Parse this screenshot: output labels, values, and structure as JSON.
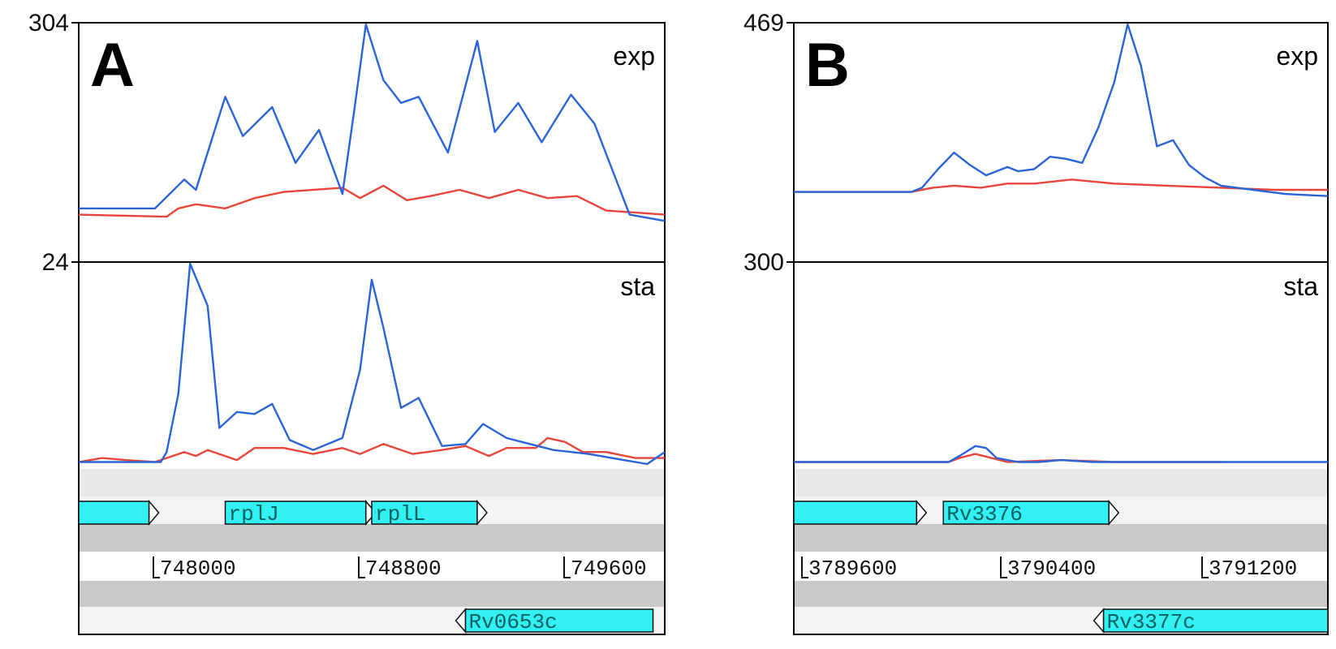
{
  "panels": [
    {
      "letter": "A",
      "exp": {
        "label": "exp",
        "ymax_label": "304",
        "blue": [
          [
            0,
            0.11
          ],
          [
            0.13,
            0.11
          ],
          [
            0.18,
            0.25
          ],
          [
            0.2,
            0.2
          ],
          [
            0.25,
            0.65
          ],
          [
            0.28,
            0.46
          ],
          [
            0.33,
            0.6
          ],
          [
            0.37,
            0.33
          ],
          [
            0.41,
            0.49
          ],
          [
            0.45,
            0.18
          ],
          [
            0.47,
            0.58
          ],
          [
            0.49,
            1.0
          ],
          [
            0.52,
            0.73
          ],
          [
            0.55,
            0.62
          ],
          [
            0.58,
            0.65
          ],
          [
            0.63,
            0.38
          ],
          [
            0.68,
            0.92
          ],
          [
            0.71,
            0.48
          ],
          [
            0.75,
            0.62
          ],
          [
            0.79,
            0.43
          ],
          [
            0.84,
            0.66
          ],
          [
            0.88,
            0.52
          ],
          [
            0.94,
            0.08
          ],
          [
            1,
            0.05
          ]
        ],
        "red": [
          [
            0,
            0.08
          ],
          [
            0.15,
            0.07
          ],
          [
            0.17,
            0.11
          ],
          [
            0.2,
            0.13
          ],
          [
            0.25,
            0.11
          ],
          [
            0.3,
            0.16
          ],
          [
            0.35,
            0.19
          ],
          [
            0.45,
            0.21
          ],
          [
            0.48,
            0.16
          ],
          [
            0.52,
            0.22
          ],
          [
            0.56,
            0.15
          ],
          [
            0.6,
            0.17
          ],
          [
            0.65,
            0.2
          ],
          [
            0.7,
            0.16
          ],
          [
            0.75,
            0.2
          ],
          [
            0.8,
            0.16
          ],
          [
            0.85,
            0.17
          ],
          [
            0.9,
            0.1
          ],
          [
            1,
            0.08
          ]
        ]
      },
      "sta": {
        "label": "sta",
        "ymax_label": "24",
        "blue": [
          [
            0,
            0.01
          ],
          [
            0.14,
            0.01
          ],
          [
            0.15,
            0.06
          ],
          [
            0.17,
            0.35
          ],
          [
            0.19,
            1.0
          ],
          [
            0.22,
            0.79
          ],
          [
            0.24,
            0.18
          ],
          [
            0.27,
            0.26
          ],
          [
            0.3,
            0.25
          ],
          [
            0.33,
            0.3
          ],
          [
            0.36,
            0.12
          ],
          [
            0.4,
            0.07
          ],
          [
            0.45,
            0.13
          ],
          [
            0.48,
            0.47
          ],
          [
            0.5,
            0.92
          ],
          [
            0.52,
            0.68
          ],
          [
            0.55,
            0.28
          ],
          [
            0.58,
            0.33
          ],
          [
            0.62,
            0.09
          ],
          [
            0.66,
            0.1
          ],
          [
            0.69,
            0.2
          ],
          [
            0.73,
            0.13
          ],
          [
            0.77,
            0.1
          ],
          [
            0.81,
            0.07
          ],
          [
            0.87,
            0.05
          ],
          [
            0.93,
            0.02
          ],
          [
            0.97,
            0.0
          ],
          [
            1,
            0.06
          ]
        ],
        "red": [
          [
            0,
            0.01
          ],
          [
            0.04,
            0.03
          ],
          [
            0.08,
            0.02
          ],
          [
            0.13,
            0.01
          ],
          [
            0.18,
            0.06
          ],
          [
            0.2,
            0.04
          ],
          [
            0.22,
            0.07
          ],
          [
            0.27,
            0.02
          ],
          [
            0.3,
            0.08
          ],
          [
            0.35,
            0.08
          ],
          [
            0.4,
            0.05
          ],
          [
            0.45,
            0.08
          ],
          [
            0.48,
            0.05
          ],
          [
            0.52,
            0.1
          ],
          [
            0.57,
            0.05
          ],
          [
            0.62,
            0.07
          ],
          [
            0.66,
            0.09
          ],
          [
            0.7,
            0.04
          ],
          [
            0.73,
            0.08
          ],
          [
            0.78,
            0.08
          ],
          [
            0.8,
            0.13
          ],
          [
            0.83,
            0.11
          ],
          [
            0.86,
            0.06
          ],
          [
            0.9,
            0.06
          ],
          [
            0.95,
            0.03
          ],
          [
            1,
            0.03
          ]
        ]
      },
      "coords": [
        "748000",
        "748800",
        "749600"
      ],
      "genes_forward": [
        {
          "label": "",
          "x0": 0.0,
          "x1": 0.12
        },
        {
          "label": "rplJ",
          "x0": 0.25,
          "x1": 0.49
        },
        {
          "label": "rplL",
          "x0": 0.5,
          "x1": 0.68
        }
      ],
      "genes_reverse": [
        {
          "label": "Rv0653c",
          "x0": 0.66,
          "x1": 0.98
        }
      ]
    },
    {
      "letter": "B",
      "exp": {
        "label": "exp",
        "ymax_label": "469",
        "blue": [
          [
            0,
            0.19
          ],
          [
            0.22,
            0.19
          ],
          [
            0.24,
            0.21
          ],
          [
            0.27,
            0.3
          ],
          [
            0.3,
            0.38
          ],
          [
            0.33,
            0.32
          ],
          [
            0.36,
            0.27
          ],
          [
            0.4,
            0.31
          ],
          [
            0.42,
            0.29
          ],
          [
            0.45,
            0.3
          ],
          [
            0.48,
            0.36
          ],
          [
            0.51,
            0.35
          ],
          [
            0.54,
            0.33
          ],
          [
            0.57,
            0.5
          ],
          [
            0.6,
            0.72
          ],
          [
            0.625,
            1.0
          ],
          [
            0.65,
            0.8
          ],
          [
            0.68,
            0.41
          ],
          [
            0.71,
            0.44
          ],
          [
            0.74,
            0.32
          ],
          [
            0.77,
            0.26
          ],
          [
            0.8,
            0.22
          ],
          [
            0.86,
            0.2
          ],
          [
            0.92,
            0.18
          ],
          [
            1,
            0.17
          ]
        ],
        "red": [
          [
            0,
            0.19
          ],
          [
            0.22,
            0.19
          ],
          [
            0.26,
            0.21
          ],
          [
            0.3,
            0.22
          ],
          [
            0.35,
            0.21
          ],
          [
            0.4,
            0.23
          ],
          [
            0.45,
            0.23
          ],
          [
            0.52,
            0.25
          ],
          [
            0.6,
            0.23
          ],
          [
            0.7,
            0.22
          ],
          [
            0.8,
            0.21
          ],
          [
            0.9,
            0.2
          ],
          [
            1,
            0.2
          ]
        ]
      },
      "sta": {
        "label": "sta",
        "ymax_label": "300",
        "blue": [
          [
            0,
            0.01
          ],
          [
            0.29,
            0.01
          ],
          [
            0.31,
            0.04
          ],
          [
            0.34,
            0.09
          ],
          [
            0.36,
            0.08
          ],
          [
            0.38,
            0.03
          ],
          [
            0.42,
            0.01
          ],
          [
            0.46,
            0.01
          ],
          [
            0.5,
            0.02
          ],
          [
            0.56,
            0.01
          ],
          [
            0.65,
            0.01
          ],
          [
            0.75,
            0.01
          ],
          [
            0.8,
            0.01
          ],
          [
            1,
            0.01
          ]
        ],
        "red": [
          [
            0,
            0.01
          ],
          [
            0.29,
            0.01
          ],
          [
            0.31,
            0.03
          ],
          [
            0.34,
            0.05
          ],
          [
            0.37,
            0.03
          ],
          [
            0.4,
            0.01
          ],
          [
            0.5,
            0.02
          ],
          [
            0.6,
            0.01
          ],
          [
            0.8,
            0.01
          ]
        ]
      },
      "coords": [
        "3789600",
        "3790400",
        "3791200"
      ],
      "genes_forward": [
        {
          "label": "",
          "x0": 0.0,
          "x1": 0.23
        },
        {
          "label": "Rv3376",
          "x0": 0.28,
          "x1": 0.59
        }
      ],
      "genes_reverse": [
        {
          "label": "Rv3377c",
          "x0": 0.58,
          "x1": 1.0
        }
      ]
    }
  ]
}
